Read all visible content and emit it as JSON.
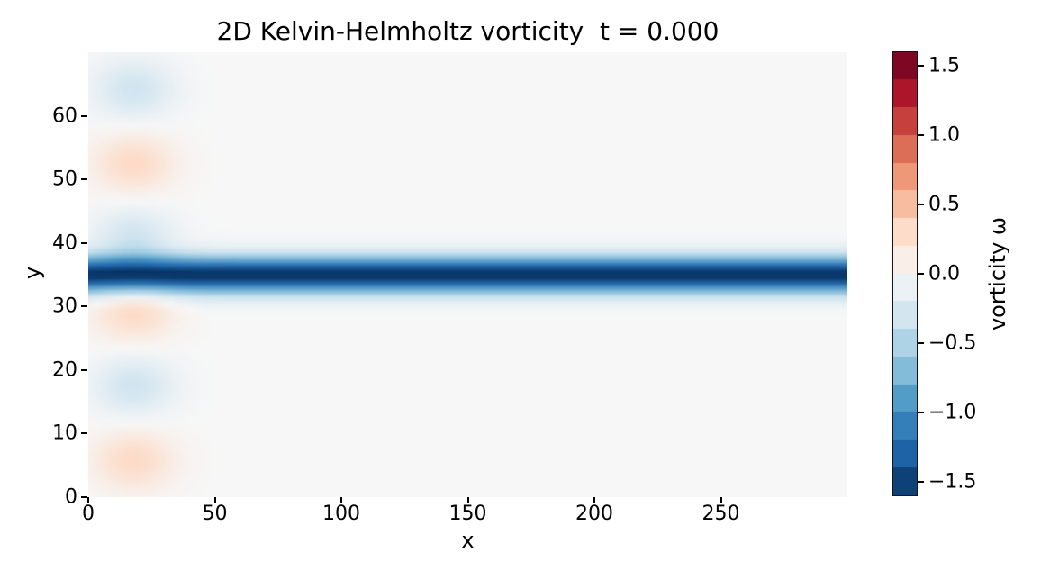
{
  "figure": {
    "title": "2D Kelvin-Helmholtz vorticity  t = 0.000",
    "time_shown": "0.000"
  },
  "chart_data": {
    "type": "heatmap",
    "title": "2D Kelvin-Helmholtz vorticity  t = 0.000",
    "xlabel": "x",
    "ylabel": "y",
    "x_range": [
      0,
      300
    ],
    "y_range": [
      0,
      70
    ],
    "x_ticks": [
      0,
      50,
      100,
      150,
      200,
      250
    ],
    "x_tick_labels": [
      "0",
      "50",
      "100",
      "150",
      "200",
      "250"
    ],
    "y_ticks": [
      0,
      10,
      20,
      30,
      40,
      50,
      60
    ],
    "y_tick_labels": [
      "0",
      "10",
      "20",
      "30",
      "40",
      "50",
      "60"
    ],
    "grid": false,
    "colormap": "RdBu (negative vorticity = blue, positive = red)",
    "colormap_anchors": [
      "#053061",
      "#2166ac",
      "#4393c3",
      "#92c5de",
      "#d1e5f0",
      "#f7f7f7",
      "#fddbc7",
      "#f4a582",
      "#d6604d",
      "#b2182b",
      "#67001f"
    ],
    "value_range": [
      -1.6,
      1.6
    ],
    "colorbar_label": "vorticity ω",
    "colorbar_levels": 16,
    "colorbar_ticks": [
      1.5,
      1.0,
      0.5,
      0.0,
      -0.5,
      -1.0,
      -1.5
    ],
    "colorbar_tick_labels": [
      "1.5",
      "1.0",
      "0.5",
      "0.0",
      "−0.5",
      "−1.0",
      "−1.5"
    ],
    "field": {
      "description": "Horizontal shear layer of strong negative vorticity centered at y = 35 spanning the full x range, plus a column of six weak alternating-sign perturbation blobs near the left edge (x ≈ 0–45); background vorticity ≈ 0",
      "shear_layer": {
        "y_center": 35,
        "amplitude": -1.6,
        "sigma_y": 2.0
      },
      "perturbation_blobs": {
        "x_center": 18,
        "sigma_x": 11,
        "sigma_y": 3.2,
        "items": [
          {
            "y_center": 5.83,
            "amplitude": 0.32
          },
          {
            "y_center": 17.5,
            "amplitude": -0.32
          },
          {
            "y_center": 29.17,
            "amplitude": 0.32
          },
          {
            "y_center": 40.83,
            "amplitude": -0.32
          },
          {
            "y_center": 52.5,
            "amplitude": 0.32
          },
          {
            "y_center": 64.17,
            "amplitude": -0.32
          }
        ]
      }
    }
  }
}
